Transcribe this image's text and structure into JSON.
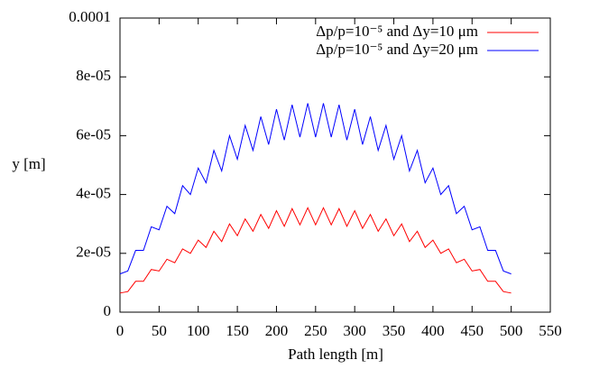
{
  "chart_data": {
    "type": "line",
    "x_label": "Path length [m]",
    "y_label": "y [m]",
    "x": [
      0,
      10,
      20,
      30,
      40,
      50,
      60,
      70,
      80,
      90,
      100,
      110,
      120,
      130,
      140,
      150,
      160,
      170,
      180,
      190,
      200,
      210,
      220,
      230,
      240,
      250,
      260,
      270,
      280,
      290,
      300,
      310,
      320,
      330,
      340,
      350,
      360,
      370,
      380,
      390,
      400,
      410,
      420,
      430,
      440,
      450,
      460,
      470,
      480,
      490,
      500
    ],
    "series": [
      {
        "name": "Δp/p=10⁻⁵ and Δy=10 μm",
        "color": "#ff0000",
        "values": [
          6.5e-06,
          7e-06,
          1.05e-05,
          1.05e-05,
          1.45e-05,
          1.4e-05,
          1.8e-05,
          1.68e-05,
          2.15e-05,
          2e-05,
          2.45e-05,
          2.2e-05,
          2.75e-05,
          2.4e-05,
          3e-05,
          2.6e-05,
          3.17e-05,
          2.75e-05,
          3.32e-05,
          2.85e-05,
          3.45e-05,
          2.92e-05,
          3.52e-05,
          2.97e-05,
          3.55e-05,
          2.97e-05,
          3.55e-05,
          2.97e-05,
          3.52e-05,
          2.92e-05,
          3.45e-05,
          2.85e-05,
          3.32e-05,
          2.75e-05,
          3.17e-05,
          2.6e-05,
          3e-05,
          2.4e-05,
          2.75e-05,
          2.2e-05,
          2.45e-05,
          2e-05,
          2.15e-05,
          1.68e-05,
          1.8e-05,
          1.4e-05,
          1.45e-05,
          1.05e-05,
          1.05e-05,
          7e-06,
          6.5e-06
        ]
      },
      {
        "name": "Δp/p=10⁻⁵ and Δy=20 μm",
        "color": "#0000ff",
        "values": [
          1.3e-05,
          1.4e-05,
          2.1e-05,
          2.1e-05,
          2.9e-05,
          2.8e-05,
          3.6e-05,
          3.35e-05,
          4.3e-05,
          4e-05,
          4.9e-05,
          4.4e-05,
          5.5e-05,
          4.8e-05,
          6e-05,
          5.2e-05,
          6.35e-05,
          5.5e-05,
          6.65e-05,
          5.7e-05,
          6.9e-05,
          5.85e-05,
          7.05e-05,
          5.95e-05,
          7.1e-05,
          5.95e-05,
          7.1e-05,
          5.95e-05,
          7.05e-05,
          5.85e-05,
          6.9e-05,
          5.7e-05,
          6.65e-05,
          5.5e-05,
          6.35e-05,
          5.2e-05,
          6e-05,
          4.8e-05,
          5.5e-05,
          4.4e-05,
          4.9e-05,
          4e-05,
          4.3e-05,
          3.35e-05,
          3.6e-05,
          2.8e-05,
          2.9e-05,
          2.1e-05,
          2.1e-05,
          1.4e-05,
          1.3e-05
        ]
      }
    ],
    "xlim": [
      0,
      550
    ],
    "xticks": [
      0,
      50,
      100,
      150,
      200,
      250,
      300,
      350,
      400,
      450,
      500,
      550
    ],
    "ylim": [
      0,
      0.0001
    ],
    "yticks": [
      0,
      {
        "value": 2e-05,
        "label": "2e-05"
      },
      {
        "value": 4e-05,
        "label": "4e-05"
      },
      {
        "value": 6e-05,
        "label": "6e-05"
      },
      {
        "value": 8e-05,
        "label": "8e-05"
      },
      0.0001
    ],
    "grid": false,
    "legend": "top-right"
  }
}
